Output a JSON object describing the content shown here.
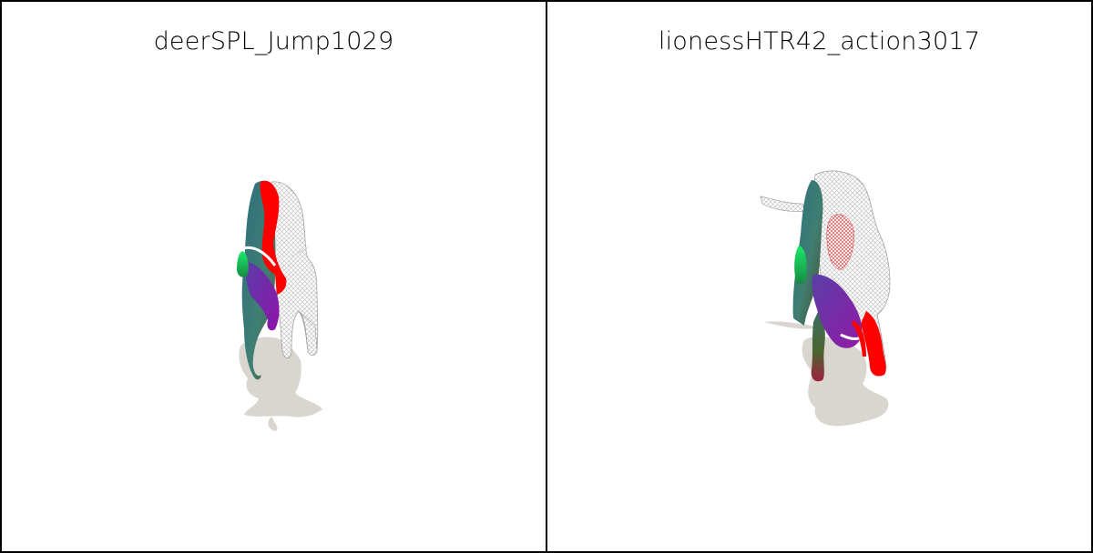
{
  "viewer": {
    "panels": [
      {
        "title": "deerSPL_Jump1029",
        "subject": "deer-mesh",
        "colors": {
          "shadow": "#d9d6d0",
          "wireframe": "#bdbdbd",
          "red": "#ff0000",
          "teal": "#3d7f86",
          "green": "#22e05a",
          "purple": "#7b1fa2"
        }
      },
      {
        "title": "lionessHTR42_action3017",
        "subject": "lioness-mesh",
        "colors": {
          "shadow": "#d9d6d0",
          "wireframe": "#bdbdbd",
          "red": "#ff0000",
          "teal": "#3d7f86",
          "green": "#22e05a",
          "purple": "#7b1fa2"
        }
      }
    ]
  }
}
